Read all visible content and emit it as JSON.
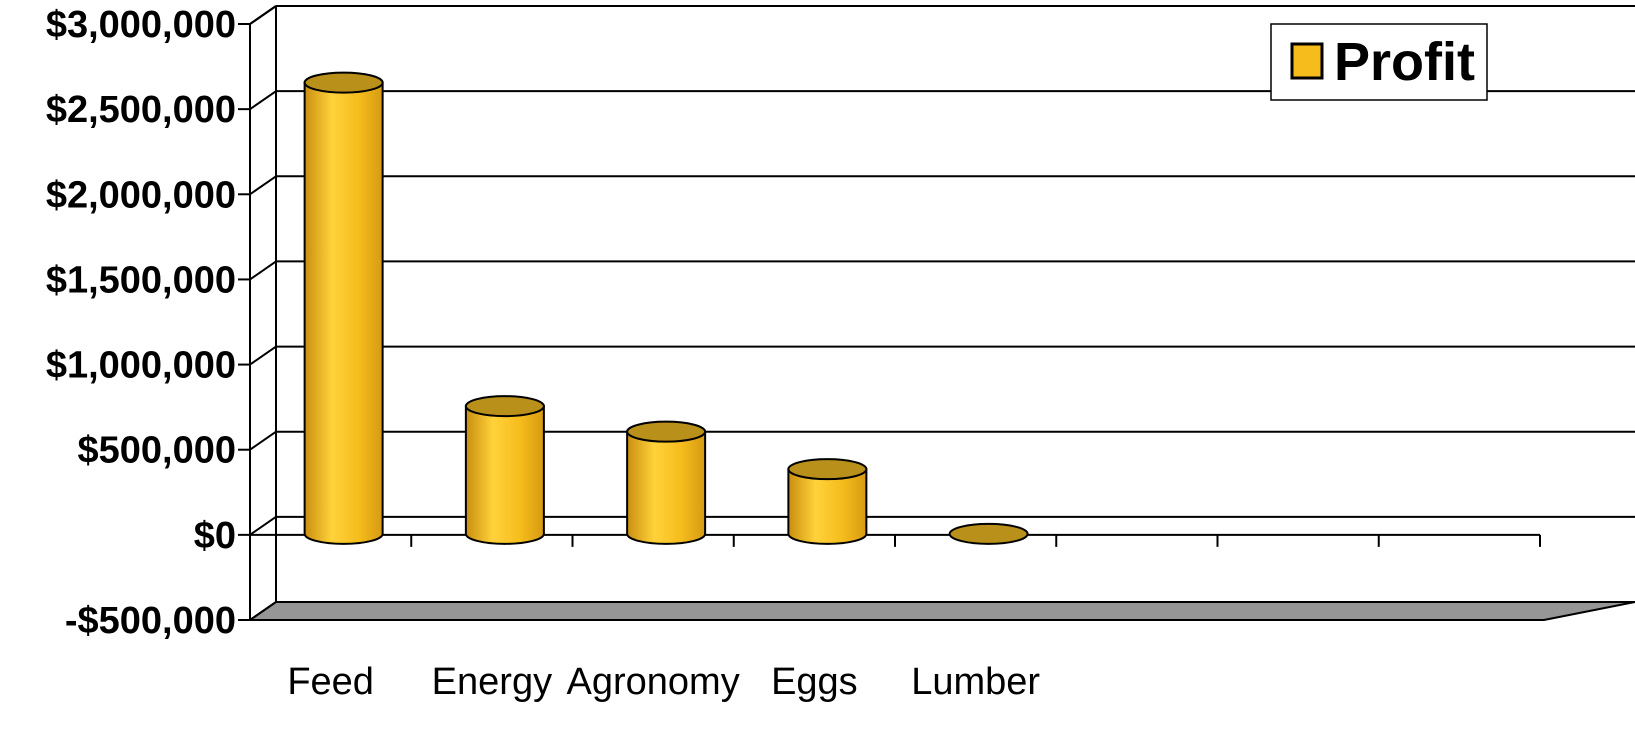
{
  "chart_data": {
    "type": "bar",
    "style": "3d-cylinder",
    "categories": [
      "Feed",
      "Energy",
      "Agronomy",
      "Eggs",
      "Lumber",
      "",
      "",
      ""
    ],
    "series": [
      {
        "name": "Profit",
        "values": [
          2650000,
          750000,
          600000,
          380000,
          0,
          null,
          null,
          null
        ]
      }
    ],
    "title": "",
    "xlabel": "",
    "ylabel": "",
    "ylim": [
      -500000,
      3000000
    ],
    "y_ticks": [
      3000000,
      2500000,
      2000000,
      1500000,
      1000000,
      500000,
      0,
      -500000
    ],
    "y_tick_labels": [
      "$3,000,000",
      "$2,500,000",
      "$2,000,000",
      "$1,500,000",
      "$1,000,000",
      "$500,000",
      "$0",
      "-$500,000"
    ],
    "grid": true,
    "legend": {
      "position": "top-right",
      "entries": [
        "Profit"
      ]
    },
    "colors": {
      "bar": "#F5BC1C",
      "bar_top": "#B8901A",
      "floor": "#969696",
      "grid": "#000000"
    }
  }
}
